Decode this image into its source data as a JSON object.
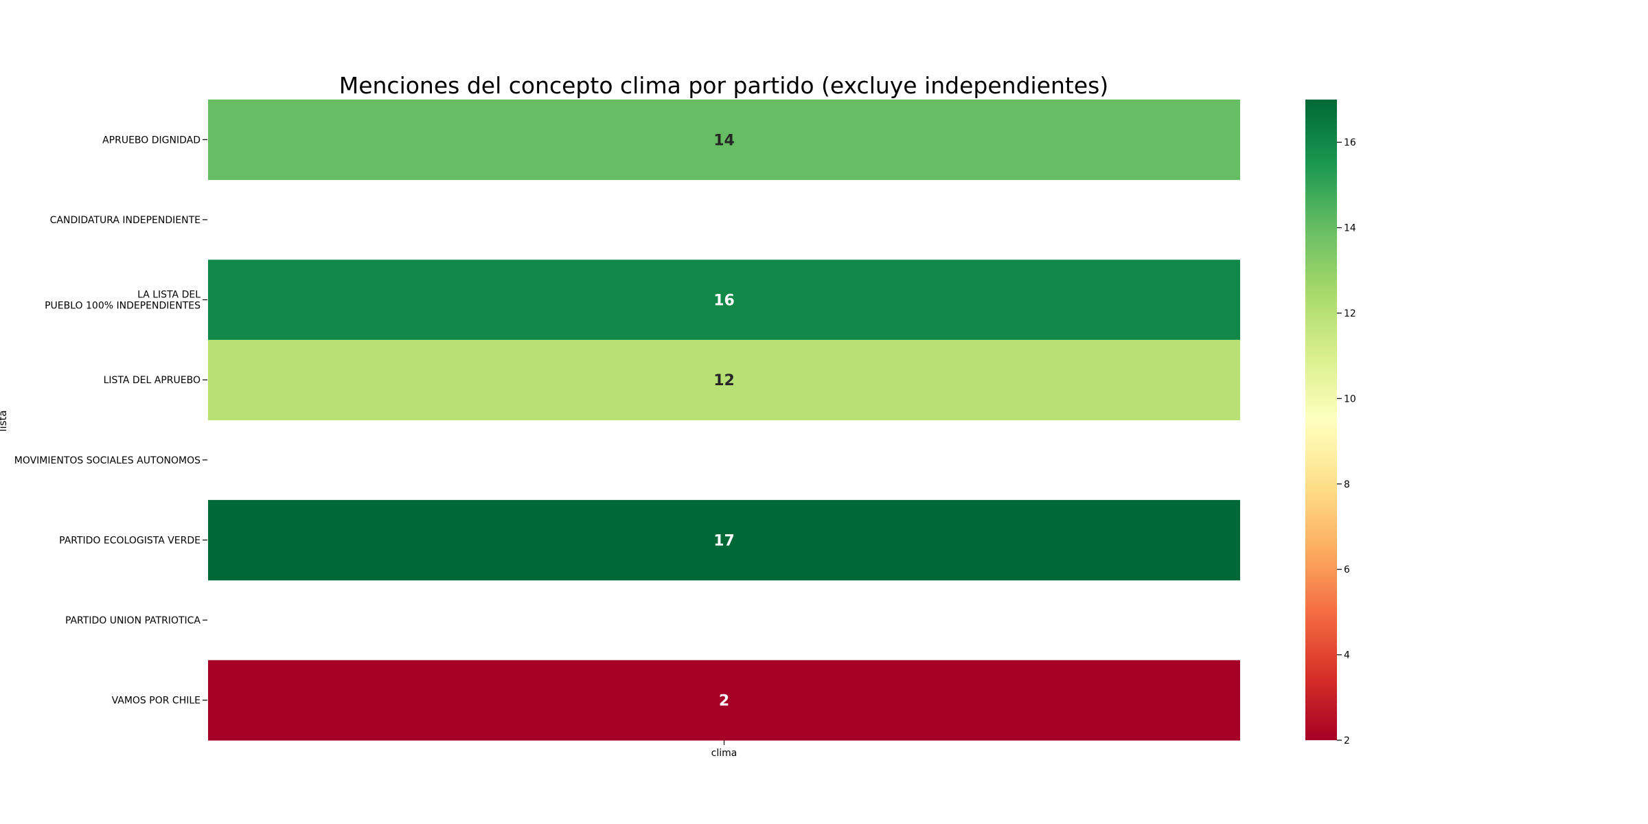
{
  "chart_data": {
    "type": "heatmap",
    "title": "Menciones del concepto clima por partido (excluye independientes)",
    "ylabel": "lista",
    "columns": [
      "clima"
    ],
    "rows": [
      {
        "label_lines": [
          "APRUEBO DIGNIDAD"
        ],
        "value": 14
      },
      {
        "label_lines": [
          "CANDIDATURA INDEPENDIENTE"
        ],
        "value": null
      },
      {
        "label_lines": [
          "LA LISTA DEL",
          "PUEBLO 100% INDEPENDIENTES"
        ],
        "value": 16
      },
      {
        "label_lines": [
          "LISTA DEL APRUEBO"
        ],
        "value": 12
      },
      {
        "label_lines": [
          "MOVIMIENTOS SOCIALES AUTONOMOS "
        ],
        "value": null
      },
      {
        "label_lines": [
          "PARTIDO ECOLOGISTA VERDE"
        ],
        "value": 17
      },
      {
        "label_lines": [
          "PARTIDO UNION PATRIOTICA"
        ],
        "value": null
      },
      {
        "label_lines": [
          "VAMOS POR CHILE"
        ],
        "value": 2
      }
    ],
    "colorbar": {
      "colormap": "RdYlGn",
      "min": 2,
      "max": 17,
      "ticks": [
        2,
        4,
        6,
        8,
        10,
        12,
        14,
        16
      ],
      "colors": [
        "#a50026",
        "#d73027",
        "#f46d43",
        "#fdae61",
        "#fee08b",
        "#ffffbf",
        "#d9ef8b",
        "#a6d96a",
        "#66bd63",
        "#1a9850",
        "#006837"
      ]
    },
    "missing_color": "#ffffff"
  }
}
